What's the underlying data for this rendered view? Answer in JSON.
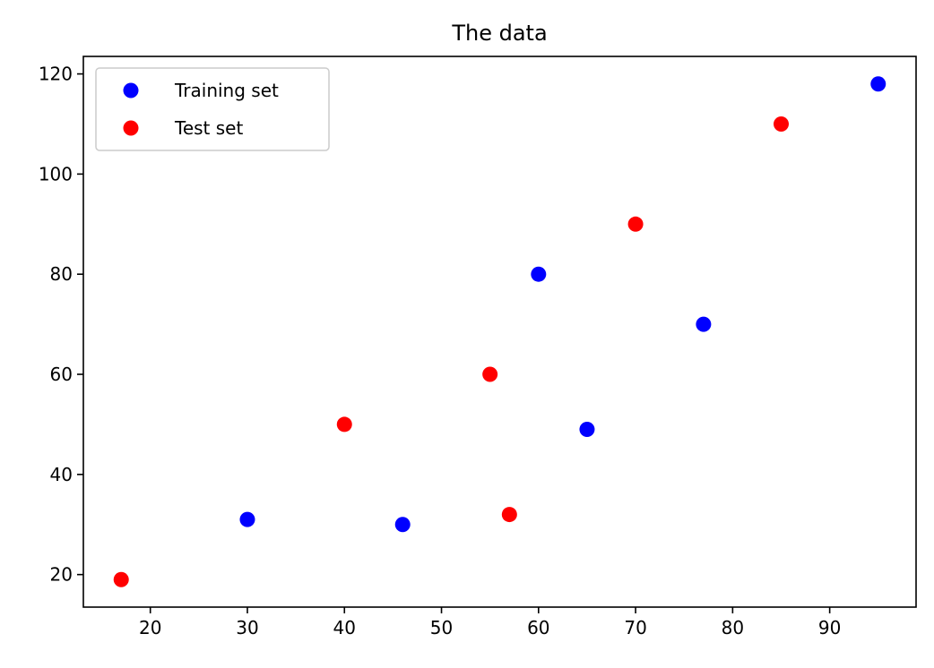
{
  "chart_data": {
    "type": "scatter",
    "title": "The data",
    "xlabel": "",
    "ylabel": "",
    "xlim": [
      13.1,
      98.9
    ],
    "ylim": [
      13.5,
      123.5
    ],
    "xticks": [
      20,
      30,
      40,
      50,
      60,
      70,
      80,
      90
    ],
    "yticks": [
      20,
      40,
      60,
      80,
      100,
      120
    ],
    "grid": false,
    "legend_position": "top-left",
    "series": [
      {
        "name": "Training set",
        "color": "#0000ff",
        "points": [
          {
            "x": 30,
            "y": 31
          },
          {
            "x": 46,
            "y": 30
          },
          {
            "x": 60,
            "y": 80
          },
          {
            "x": 65,
            "y": 49
          },
          {
            "x": 77,
            "y": 70
          },
          {
            "x": 95,
            "y": 118
          }
        ]
      },
      {
        "name": "Test set",
        "color": "#ff0000",
        "points": [
          {
            "x": 17,
            "y": 19
          },
          {
            "x": 40,
            "y": 50
          },
          {
            "x": 55,
            "y": 60
          },
          {
            "x": 57,
            "y": 32
          },
          {
            "x": 70,
            "y": 90
          },
          {
            "x": 85,
            "y": 110
          }
        ]
      }
    ]
  }
}
